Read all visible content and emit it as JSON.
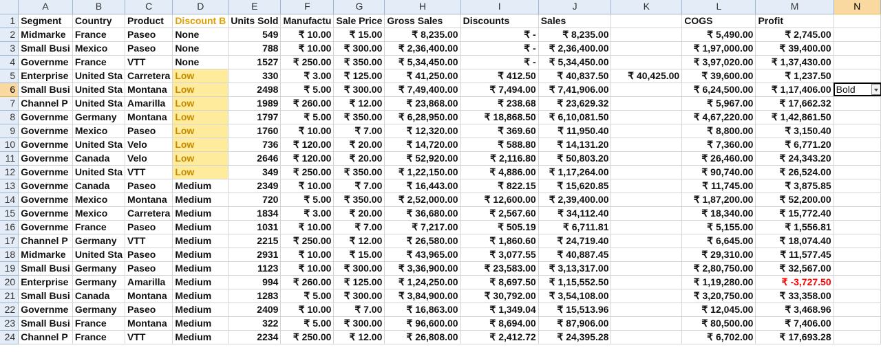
{
  "columns": [
    "A",
    "B",
    "C",
    "D",
    "E",
    "F",
    "G",
    "H",
    "I",
    "J",
    "K",
    "L",
    "M",
    "N"
  ],
  "selected_column": "N",
  "active_cell": {
    "value": "Bold"
  },
  "rows": [
    {
      "n": "1",
      "cells": [
        "Segment",
        "Country",
        "Product",
        "Discount B",
        "Units Sold",
        "Manufactu",
        "Sale Price",
        "Gross Sales",
        "Discounts",
        "Sales",
        "",
        "COGS",
        "Profit",
        ""
      ]
    },
    {
      "n": "2",
      "cells": [
        "Midmarke",
        "France",
        "Paseo",
        "None",
        "549",
        "₹ 10.00",
        "₹ 15.00",
        "₹ 8,235.00",
        "₹ -",
        "₹ 8,235.00",
        "",
        "₹ 5,490.00",
        "₹ 2,745.00",
        ""
      ]
    },
    {
      "n": "3",
      "cells": [
        "Small Busi",
        "Mexico",
        "Paseo",
        "None",
        "788",
        "₹ 10.00",
        "₹ 300.00",
        "₹ 2,36,400.00",
        "₹ -",
        "₹ 2,36,400.00",
        "",
        "₹ 1,97,000.00",
        "₹ 39,400.00",
        ""
      ]
    },
    {
      "n": "4",
      "cells": [
        "Governme",
        "France",
        "VTT",
        "None",
        "1527",
        "₹ 250.00",
        "₹ 350.00",
        "₹ 5,34,450.00",
        "₹ -",
        "₹ 5,34,450.00",
        "",
        "₹ 3,97,020.00",
        "₹ 1,37,430.00",
        ""
      ]
    },
    {
      "n": "5",
      "cells": [
        "Enterprise",
        "United Sta",
        "Carretera",
        "Low",
        "330",
        "₹ 3.00",
        "₹ 125.00",
        "₹ 41,250.00",
        "₹ 412.50",
        "₹ 40,837.50",
        "₹ 40,425.00",
        "₹ 39,600.00",
        "₹ 1,237.50",
        ""
      ]
    },
    {
      "n": "6",
      "cells": [
        "Small Busi",
        "United Sta",
        "Montana",
        "Low",
        "2498",
        "₹ 5.00",
        "₹ 300.00",
        "₹ 7,49,400.00",
        "₹ 7,494.00",
        "₹ 7,41,906.00",
        "",
        "₹ 6,24,500.00",
        "₹ 1,17,406.00",
        "Bold"
      ]
    },
    {
      "n": "7",
      "cells": [
        "Channel P",
        "United Sta",
        "Amarilla",
        "Low",
        "1989",
        "₹ 260.00",
        "₹ 12.00",
        "₹ 23,868.00",
        "₹ 238.68",
        "₹ 23,629.32",
        "",
        "₹ 5,967.00",
        "₹ 17,662.32",
        ""
      ]
    },
    {
      "n": "8",
      "cells": [
        "Governme",
        "Germany",
        "Montana",
        "Low",
        "1797",
        "₹ 5.00",
        "₹ 350.00",
        "₹ 6,28,950.00",
        "₹ 18,868.50",
        "₹ 6,10,081.50",
        "",
        "₹ 4,67,220.00",
        "₹ 1,42,861.50",
        ""
      ]
    },
    {
      "n": "9",
      "cells": [
        "Governme",
        "Mexico",
        "Paseo",
        "Low",
        "1760",
        "₹ 10.00",
        "₹ 7.00",
        "₹ 12,320.00",
        "₹ 369.60",
        "₹ 11,950.40",
        "",
        "₹ 8,800.00",
        "₹ 3,150.40",
        ""
      ]
    },
    {
      "n": "10",
      "cells": [
        "Governme",
        "United Sta",
        "Velo",
        "Low",
        "736",
        "₹ 120.00",
        "₹ 20.00",
        "₹ 14,720.00",
        "₹ 588.80",
        "₹ 14,131.20",
        "",
        "₹ 7,360.00",
        "₹ 6,771.20",
        ""
      ]
    },
    {
      "n": "11",
      "cells": [
        "Governme",
        "Canada",
        "Velo",
        "Low",
        "2646",
        "₹ 120.00",
        "₹ 20.00",
        "₹ 52,920.00",
        "₹ 2,116.80",
        "₹ 50,803.20",
        "",
        "₹ 26,460.00",
        "₹ 24,343.20",
        ""
      ]
    },
    {
      "n": "12",
      "cells": [
        "Governme",
        "United Sta",
        "VTT",
        "Low",
        "349",
        "₹ 250.00",
        "₹ 350.00",
        "₹ 1,22,150.00",
        "₹ 4,886.00",
        "₹ 1,17,264.00",
        "",
        "₹ 90,740.00",
        "₹ 26,524.00",
        ""
      ]
    },
    {
      "n": "13",
      "cells": [
        "Governme",
        "Canada",
        "Paseo",
        "Medium",
        "2349",
        "₹ 10.00",
        "₹ 7.00",
        "₹ 16,443.00",
        "₹ 822.15",
        "₹ 15,620.85",
        "",
        "₹ 11,745.00",
        "₹ 3,875.85",
        ""
      ]
    },
    {
      "n": "14",
      "cells": [
        "Governme",
        "Mexico",
        "Montana",
        "Medium",
        "720",
        "₹ 5.00",
        "₹ 350.00",
        "₹ 2,52,000.00",
        "₹ 12,600.00",
        "₹ 2,39,400.00",
        "",
        "₹ 1,87,200.00",
        "₹ 52,200.00",
        ""
      ]
    },
    {
      "n": "15",
      "cells": [
        "Governme",
        "Mexico",
        "Carretera",
        "Medium",
        "1834",
        "₹ 3.00",
        "₹ 20.00",
        "₹ 36,680.00",
        "₹ 2,567.60",
        "₹ 34,112.40",
        "",
        "₹ 18,340.00",
        "₹ 15,772.40",
        ""
      ]
    },
    {
      "n": "16",
      "cells": [
        "Governme",
        "France",
        "Paseo",
        "Medium",
        "1031",
        "₹ 10.00",
        "₹ 7.00",
        "₹ 7,217.00",
        "₹ 505.19",
        "₹ 6,711.81",
        "",
        "₹ 5,155.00",
        "₹ 1,556.81",
        ""
      ]
    },
    {
      "n": "17",
      "cells": [
        "Channel P",
        "Germany",
        "VTT",
        "Medium",
        "2215",
        "₹ 250.00",
        "₹ 12.00",
        "₹ 26,580.00",
        "₹ 1,860.60",
        "₹ 24,719.40",
        "",
        "₹ 6,645.00",
        "₹ 18,074.40",
        ""
      ]
    },
    {
      "n": "18",
      "cells": [
        "Midmarke",
        "United Sta",
        "Paseo",
        "Medium",
        "2931",
        "₹ 10.00",
        "₹ 15.00",
        "₹ 43,965.00",
        "₹ 3,077.55",
        "₹ 40,887.45",
        "",
        "₹ 29,310.00",
        "₹ 11,577.45",
        ""
      ]
    },
    {
      "n": "19",
      "cells": [
        "Small Busi",
        "Germany",
        "Paseo",
        "Medium",
        "1123",
        "₹ 10.00",
        "₹ 300.00",
        "₹ 3,36,900.00",
        "₹ 23,583.00",
        "₹ 3,13,317.00",
        "",
        "₹ 2,80,750.00",
        "₹ 32,567.00",
        ""
      ]
    },
    {
      "n": "20",
      "cells": [
        "Enterprise",
        "Germany",
        "Amarilla",
        "Medium",
        "994",
        "₹ 260.00",
        "₹ 125.00",
        "₹ 1,24,250.00",
        "₹ 8,697.50",
        "₹ 1,15,552.50",
        "",
        "₹ 1,19,280.00",
        "₹ -3,727.50",
        ""
      ]
    },
    {
      "n": "21",
      "cells": [
        "Small Busi",
        "Canada",
        "Montana",
        "Medium",
        "1283",
        "₹ 5.00",
        "₹ 300.00",
        "₹ 3,84,900.00",
        "₹ 30,792.00",
        "₹ 3,54,108.00",
        "",
        "₹ 3,20,750.00",
        "₹ 33,358.00",
        ""
      ]
    },
    {
      "n": "22",
      "cells": [
        "Governme",
        "Germany",
        "Paseo",
        "Medium",
        "2409",
        "₹ 10.00",
        "₹ 7.00",
        "₹ 16,863.00",
        "₹ 1,349.04",
        "₹ 15,513.96",
        "",
        "₹ 12,045.00",
        "₹ 3,468.96",
        ""
      ]
    },
    {
      "n": "23",
      "cells": [
        "Small Busi",
        "France",
        "Montana",
        "Medium",
        "322",
        "₹ 5.00",
        "₹ 300.00",
        "₹ 96,600.00",
        "₹ 8,694.00",
        "₹ 87,906.00",
        "",
        "₹ 80,500.00",
        "₹ 7,406.00",
        ""
      ]
    },
    {
      "n": "24",
      "cells": [
        "Channel P",
        "France",
        "VTT",
        "Medium",
        "2234",
        "₹ 250.00",
        "₹ 12.00",
        "₹ 26,808.00",
        "₹ 2,412.72",
        "₹ 24,395.28",
        "",
        "₹ 6,702.00",
        "₹ 17,693.28",
        ""
      ]
    }
  ],
  "colors": {
    "header_bg": "#e4ecf7",
    "low_fill": "#ffeb9c",
    "low_text": "#c68a00",
    "negative": "#ff0000",
    "selected_header": "#f9d99f"
  }
}
